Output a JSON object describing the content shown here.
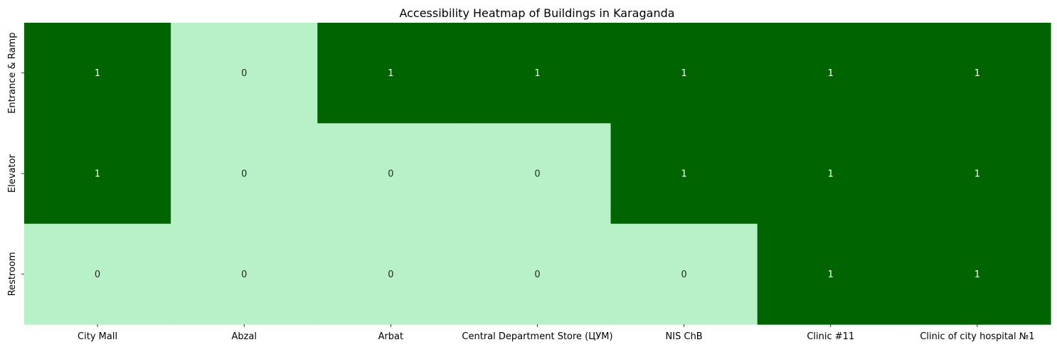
{
  "chart_data": {
    "type": "heatmap",
    "title": "Accessibility Heatmap of Buildings in Karaganda",
    "xlabel": "",
    "ylabel": "",
    "columns": [
      "City Mall",
      "Abzal",
      "Arbat",
      "Central Department Store (ЦУМ)",
      "NIS ChB",
      "Clinic #11",
      "Clinic of city hospital №1"
    ],
    "rows": [
      "Entrance & Ramp",
      "Elevator",
      "Restroom"
    ],
    "values": [
      [
        1,
        0,
        1,
        1,
        1,
        1,
        1
      ],
      [
        1,
        0,
        0,
        0,
        1,
        1,
        1
      ],
      [
        0,
        0,
        0,
        0,
        0,
        1,
        1
      ]
    ],
    "annotations": true,
    "colorbar": false,
    "colors": {
      "0": "#b8f0c8",
      "1": "#006400",
      "label_on_0": "#262626",
      "label_on_1": "#ffffff"
    }
  }
}
